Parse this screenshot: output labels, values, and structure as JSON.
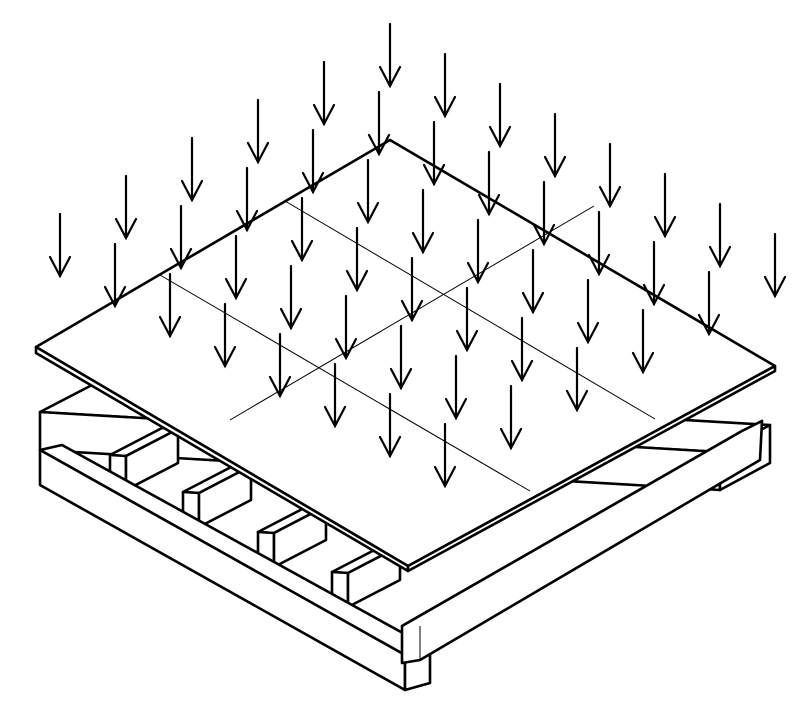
{
  "figure": {
    "subject": "distributed-load-on-panel-over-joists",
    "line_color": "#000000",
    "background_color": "#ffffff",
    "arrow_direction": "down"
  }
}
